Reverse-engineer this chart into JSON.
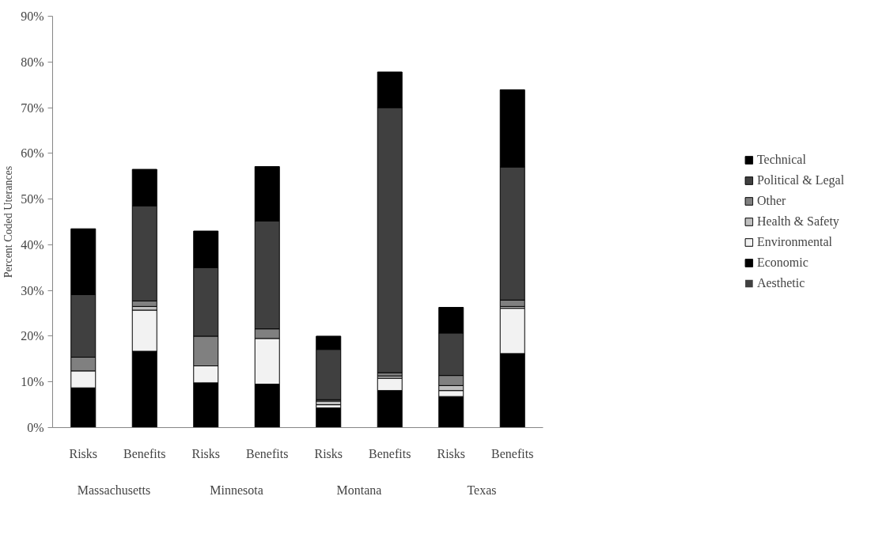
{
  "chart_data": {
    "type": "bar",
    "stacked": true,
    "ylabel": "Percent Coded Uterances",
    "categories": [
      "Risks",
      "Benefits",
      "Risks",
      "Benefits",
      "Risks",
      "Benefits",
      "Risks",
      "Benefits"
    ],
    "annotations": [
      "Massachusetts",
      "Minnesota",
      "Montana",
      "Texas"
    ],
    "series": [
      {
        "name": "Aesthetic",
        "color": "#404040",
        "values": [
          0,
          0,
          0,
          0,
          0,
          0,
          0,
          0
        ]
      },
      {
        "name": "Economic",
        "color": "#000000",
        "values": [
          8.7,
          16.7,
          9.8,
          9.5,
          4.3,
          8.1,
          6.8,
          16.2
        ]
      },
      {
        "name": "Environmental",
        "color": "#f2f2f2",
        "values": [
          3.7,
          9.0,
          3.7,
          10.0,
          0.7,
          2.7,
          1.3,
          9.9
        ]
      },
      {
        "name": "Health & Safety",
        "color": "#c0c0c0",
        "values": [
          0,
          0.8,
          0,
          0,
          0.8,
          0.5,
          1.1,
          0.4
        ]
      },
      {
        "name": "Other",
        "color": "#808080",
        "values": [
          3.0,
          1.2,
          6.5,
          2.1,
          0.3,
          0.7,
          2.2,
          1.4
        ]
      },
      {
        "name": "Political & Legal",
        "color": "#404040",
        "values": [
          13.7,
          20.8,
          15.0,
          23.6,
          11.0,
          58.0,
          9.3,
          29.1
        ]
      },
      {
        "name": "Technical",
        "color": "#000000",
        "values": [
          14.4,
          8.0,
          8.0,
          11.9,
          2.9,
          7.8,
          5.6,
          16.9
        ]
      }
    ],
    "ylim": [
      0,
      90
    ],
    "yticks": [
      {
        "value": 0,
        "label": "0%"
      },
      {
        "value": 10,
        "label": "10%"
      },
      {
        "value": 20,
        "label": "20%"
      },
      {
        "value": 30,
        "label": "30%"
      },
      {
        "value": 40,
        "label": "40%"
      },
      {
        "value": 50,
        "label": "50%"
      },
      {
        "value": 60,
        "label": "60%"
      },
      {
        "value": 70,
        "label": "70%"
      },
      {
        "value": 80,
        "label": "80%"
      },
      {
        "value": 90,
        "label": "90%"
      }
    ],
    "grid": false,
    "legend": "right"
  }
}
